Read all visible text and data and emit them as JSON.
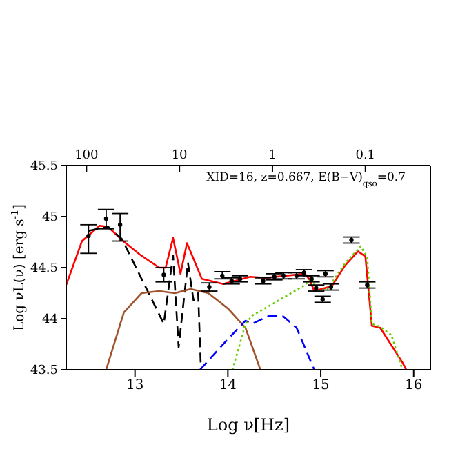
{
  "chart_data": {
    "type": "line",
    "xlabel": "Log ν[Hz]",
    "ylabel": "Log νL(ν) [erg s$^{-1}$]",
    "annotations": [
      "XID=16, z=0.667, E(B−V)$_{qso}$=0.7"
    ],
    "xlim": [
      12.26,
      16.18
    ],
    "xticks": [
      13,
      14,
      15,
      16
    ],
    "ylim": [
      43.5,
      45.5
    ],
    "yticks": [
      43.5,
      44,
      44.5,
      45,
      45.5
    ],
    "x2lim": [
      165,
      0.02
    ],
    "x2ticks": [
      100,
      10,
      1,
      0.1
    ],
    "log": "x2",
    "marker": "none",
    "series": [
      {
        "color": "#ff0000",
        "line_style": "solid",
        "x": [
          12.26,
          12.43,
          12.62,
          12.71,
          12.86,
          13.05,
          13.26,
          13.33,
          13.41,
          13.49,
          13.56,
          13.72,
          13.95,
          14.24,
          14.41,
          14.83,
          14.88,
          14.93,
          15.12,
          15.26,
          15.4,
          15.48,
          15.55,
          15.64,
          15.88,
          15.92
        ],
        "values": [
          44.33,
          44.76,
          44.91,
          44.9,
          44.77,
          44.63,
          44.5,
          44.5,
          44.79,
          44.44,
          44.74,
          44.39,
          44.34,
          44.41,
          44.4,
          44.44,
          44.38,
          44.27,
          44.32,
          44.52,
          44.66,
          44.61,
          43.93,
          43.91,
          43.57,
          43.5
        ]
      },
      {
        "color": "#000000",
        "line_style": "dashed",
        "x": [
          12.5,
          12.71,
          12.86,
          13.31,
          13.41,
          13.47,
          13.57,
          13.63,
          13.68,
          13.71
        ],
        "values": [
          44.86,
          44.9,
          44.78,
          43.95,
          44.62,
          43.72,
          44.55,
          44.18,
          44.25,
          43.5
        ]
      },
      {
        "color": "#a0522d",
        "line_style": "solid",
        "x": [
          12.69,
          12.88,
          13.07,
          13.26,
          13.43,
          13.6,
          13.79,
          14.0,
          14.19,
          14.35
        ],
        "values": [
          43.5,
          44.06,
          44.25,
          44.27,
          44.25,
          44.29,
          44.25,
          44.1,
          43.91,
          43.5
        ]
      },
      {
        "color": "#0000ff",
        "line_style": "dashed",
        "x": [
          13.7,
          14.0,
          14.19,
          14.26,
          14.45,
          14.6,
          14.74,
          14.93
        ],
        "values": [
          43.5,
          43.8,
          43.98,
          43.95,
          44.03,
          44.02,
          43.91,
          43.5
        ]
      },
      {
        "color": "#66cc00",
        "line_style": "dotted",
        "x": [
          14.05,
          14.19,
          14.26,
          14.55,
          14.83,
          14.91,
          14.95,
          15.07,
          15.26,
          15.43,
          15.5,
          15.55,
          15.64,
          15.76,
          15.88
        ],
        "values": [
          43.5,
          43.95,
          44.03,
          44.18,
          44.33,
          44.4,
          44.27,
          44.29,
          44.54,
          44.71,
          44.6,
          43.95,
          43.92,
          43.84,
          43.5
        ]
      },
      {
        "type": "scatter",
        "color": "#000000",
        "marker": "circle",
        "x": [
          12.5,
          12.69,
          12.84,
          13.31,
          13.8,
          13.94,
          14.04,
          14.13,
          14.38,
          14.5,
          14.6,
          14.74,
          14.82,
          14.9,
          14.95,
          15.02,
          15.05,
          15.11,
          15.33,
          15.5
        ],
        "values": [
          44.81,
          44.98,
          44.92,
          44.43,
          44.31,
          44.42,
          44.37,
          44.39,
          44.37,
          44.41,
          44.42,
          44.42,
          44.45,
          44.39,
          44.3,
          44.19,
          44.44,
          44.31,
          44.77,
          44.33
        ],
        "errors": [
          [
            44.64,
            44.92
          ],
          [
            44.88,
            45.07
          ],
          [
            44.76,
            45.03
          ],
          [
            44.36,
            44.5
          ],
          [
            44.27,
            44.35
          ],
          [
            44.39,
            44.46
          ],
          [
            44.34,
            44.4
          ],
          [
            44.36,
            44.42
          ],
          [
            44.34,
            44.4
          ],
          [
            44.38,
            44.44
          ],
          [
            44.39,
            44.45
          ],
          [
            44.39,
            44.45
          ],
          [
            44.42,
            44.48
          ],
          [
            44.36,
            44.42
          ],
          [
            44.27,
            44.33
          ],
          [
            44.16,
            44.22
          ],
          [
            44.41,
            44.47
          ],
          [
            44.28,
            44.34
          ],
          [
            44.74,
            44.8
          ],
          [
            44.3,
            44.36
          ]
        ]
      }
    ]
  }
}
